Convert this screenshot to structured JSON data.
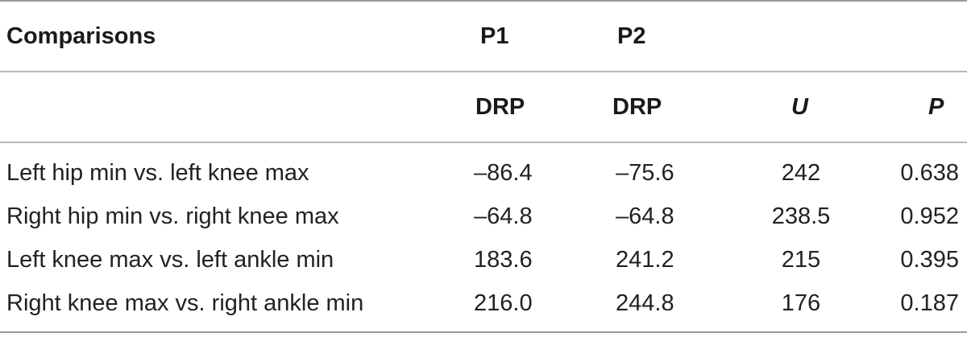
{
  "table": {
    "header_top": {
      "col0": "Comparisons",
      "col1": "P1",
      "col2": "P2"
    },
    "header_sub": {
      "col1": "DRP",
      "col2": "DRP",
      "col3": "U",
      "col4": "P"
    },
    "rows": [
      {
        "comparison": "Left hip min vs. left knee max",
        "p1": "–86.4",
        "p2": "–75.6",
        "u": "242",
        "p": "0.638"
      },
      {
        "comparison": "Right hip min vs. right knee max",
        "p1": "–64.8",
        "p2": "–64.8",
        "u": "238.5",
        "p": "0.952"
      },
      {
        "comparison": "Left knee max vs. left ankle min",
        "p1": "183.6",
        "p2": "241.2",
        "u": "215",
        "p": "0.395"
      },
      {
        "comparison": "Right knee max vs. right ankle min",
        "p1": "216.0",
        "p2": "244.8",
        "u": "176",
        "p": "0.187"
      }
    ]
  }
}
